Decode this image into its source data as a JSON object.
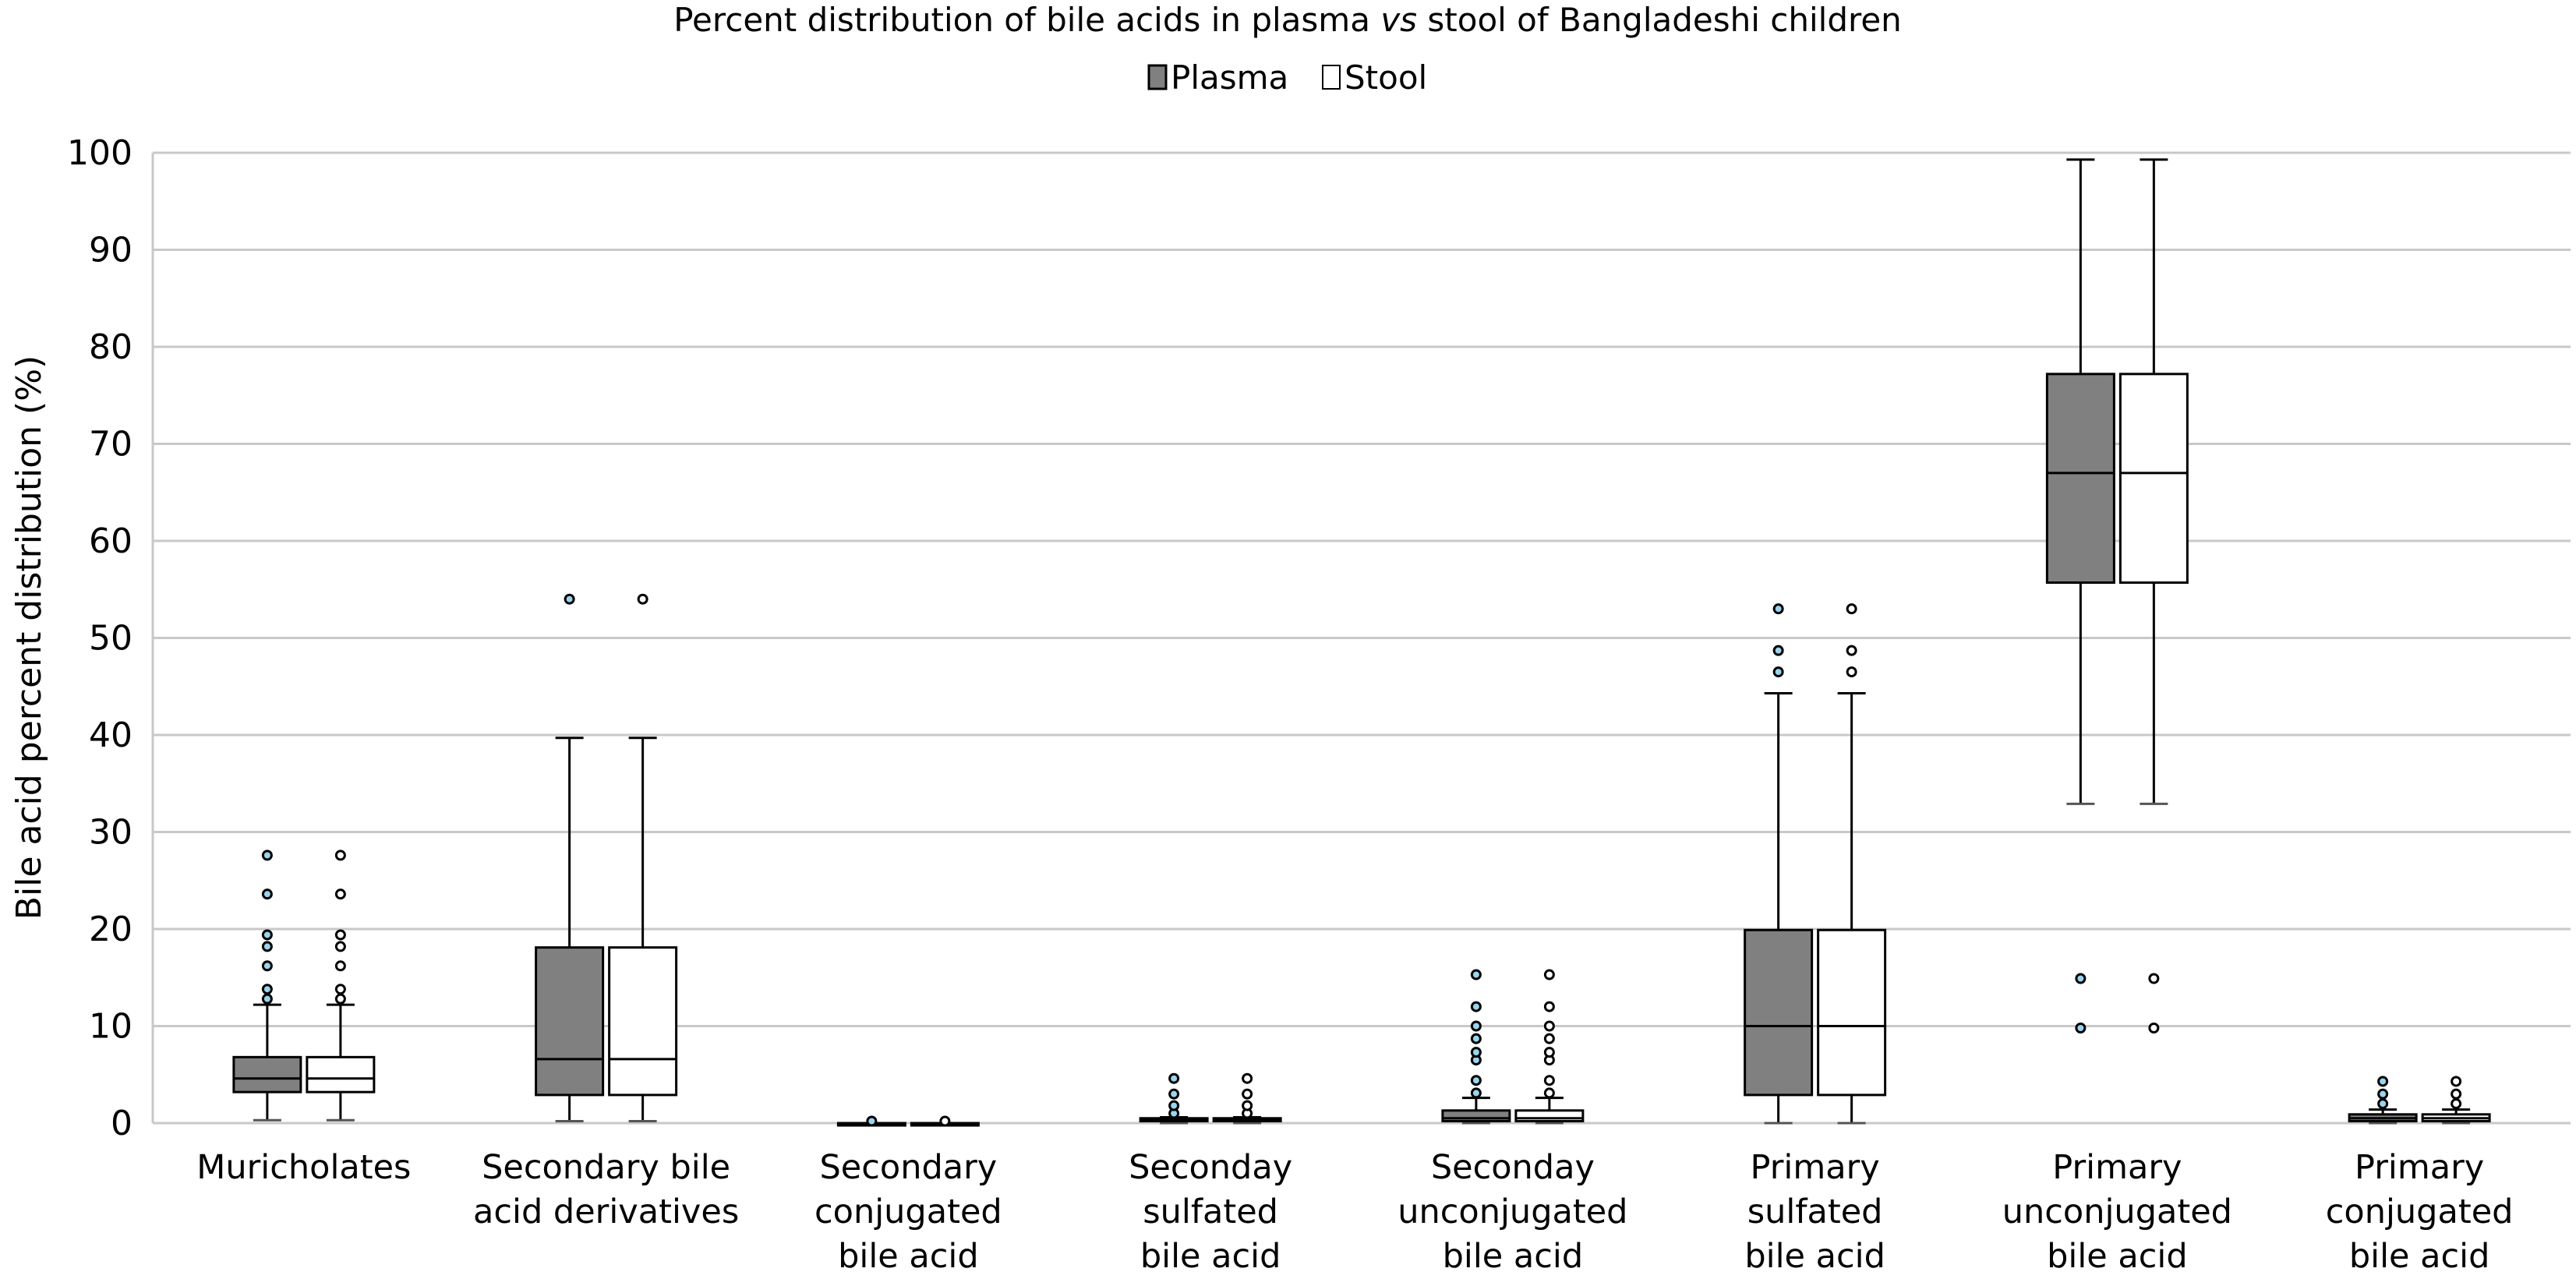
{
  "chart_data": {
    "type": "boxplot",
    "title_parts": [
      "Percent distribution of bile acids in plasma ",
      "vs",
      " stool of Bangladeshi children"
    ],
    "ylabel": "Bile acid percent distribution (%)",
    "xlabel": "",
    "ylim": [
      0,
      100
    ],
    "yticks": [
      0,
      10,
      20,
      30,
      40,
      50,
      60,
      70,
      80,
      90,
      100
    ],
    "grid": true,
    "legend_position": "top-center",
    "series": [
      {
        "name": "Plasma",
        "color": "#808080"
      },
      {
        "name": "Stool",
        "color": "#ffffff"
      }
    ],
    "categories": [
      {
        "lines": [
          "Muricholates"
        ],
        "box": {
          "min": 0.3,
          "q1": 3.2,
          "median": 4.6,
          "q3": 6.8,
          "max": 12.2,
          "outliers": [
            12.8,
            13.8,
            16.2,
            18.2,
            19.4,
            23.6,
            27.6
          ]
        }
      },
      {
        "lines": [
          "Secondary bile",
          "acid derivatives"
        ],
        "box": {
          "min": 0.2,
          "q1": 2.9,
          "median": 6.6,
          "q3": 18.1,
          "max": 39.7,
          "outliers": [
            54.0
          ]
        }
      },
      {
        "lines": [
          "Secondary",
          "conjugated",
          "bile acid"
        ],
        "box": {
          "min": 0,
          "q1": 0,
          "median": 0,
          "q3": 0,
          "max": 0,
          "outliers": [
            0.2
          ]
        }
      },
      {
        "lines": [
          "Seconday",
          "sulfated",
          "bile acid"
        ],
        "box": {
          "min": 0,
          "q1": 0.2,
          "median": 0.3,
          "q3": 0.5,
          "max": 0.6,
          "outliers": [
            1.0,
            1.8,
            3.0,
            4.6
          ]
        }
      },
      {
        "lines": [
          "Seconday",
          "unconjugated",
          "bile acid"
        ],
        "box": {
          "min": 0,
          "q1": 0.2,
          "median": 0.5,
          "q3": 1.3,
          "max": 2.6,
          "outliers": [
            3.1,
            4.4,
            6.5,
            7.3,
            8.7,
            10.0,
            12.0,
            15.3
          ]
        }
      },
      {
        "lines": [
          "Primary",
          "sulfated",
          "bile acid"
        ],
        "box": {
          "min": 0,
          "q1": 2.9,
          "median": 10.0,
          "q3": 19.9,
          "max": 44.3,
          "outliers": [
            46.5,
            48.7,
            53.0
          ]
        }
      },
      {
        "lines": [
          "Primary",
          "unconjugated",
          "bile acid"
        ],
        "box": {
          "min": 32.9,
          "q1": 55.7,
          "median": 67.0,
          "q3": 77.2,
          "max": 99.3,
          "outliers": [
            9.8,
            14.9
          ]
        }
      },
      {
        "lines": [
          "Primary",
          "conjugated",
          "bile acid"
        ],
        "box": {
          "min": 0,
          "q1": 0.2,
          "median": 0.5,
          "q3": 0.9,
          "max": 1.4,
          "outliers": [
            2.0,
            3.0,
            4.3
          ]
        }
      }
    ]
  }
}
